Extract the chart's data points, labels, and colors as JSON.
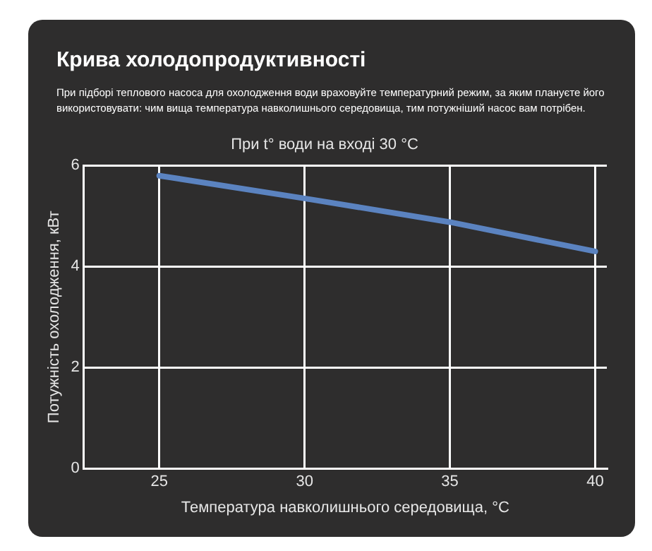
{
  "chart_data": {
    "type": "line",
    "title": "Крива холодопродуктивності",
    "annotations": [
      "При підборі теплового насоса для охолодження води враховуйте температурний режим, за яким плануєте його використовувати: чим вища температура навколишнього середовища, тим потужніший насос вам потрібен."
    ],
    "subtitle": "При t° води на вході 30 °C",
    "xlabel": "Температура навколишнього середовища, °C",
    "ylabel": "Потужність охолодження, кВт",
    "x": [
      25,
      30,
      35,
      40
    ],
    "series": [
      {
        "color": "#5b83c0",
        "values": [
          5.8,
          5.35,
          4.88,
          4.3
        ]
      }
    ],
    "xlim": [
      22.4,
      40.4
    ],
    "xticks": [
      25,
      30,
      35,
      40
    ],
    "ylim": [
      0,
      6
    ],
    "yticks": [
      0,
      2,
      4,
      6
    ],
    "grid": true,
    "legend": false,
    "marker": "none",
    "line_style": "solid"
  }
}
